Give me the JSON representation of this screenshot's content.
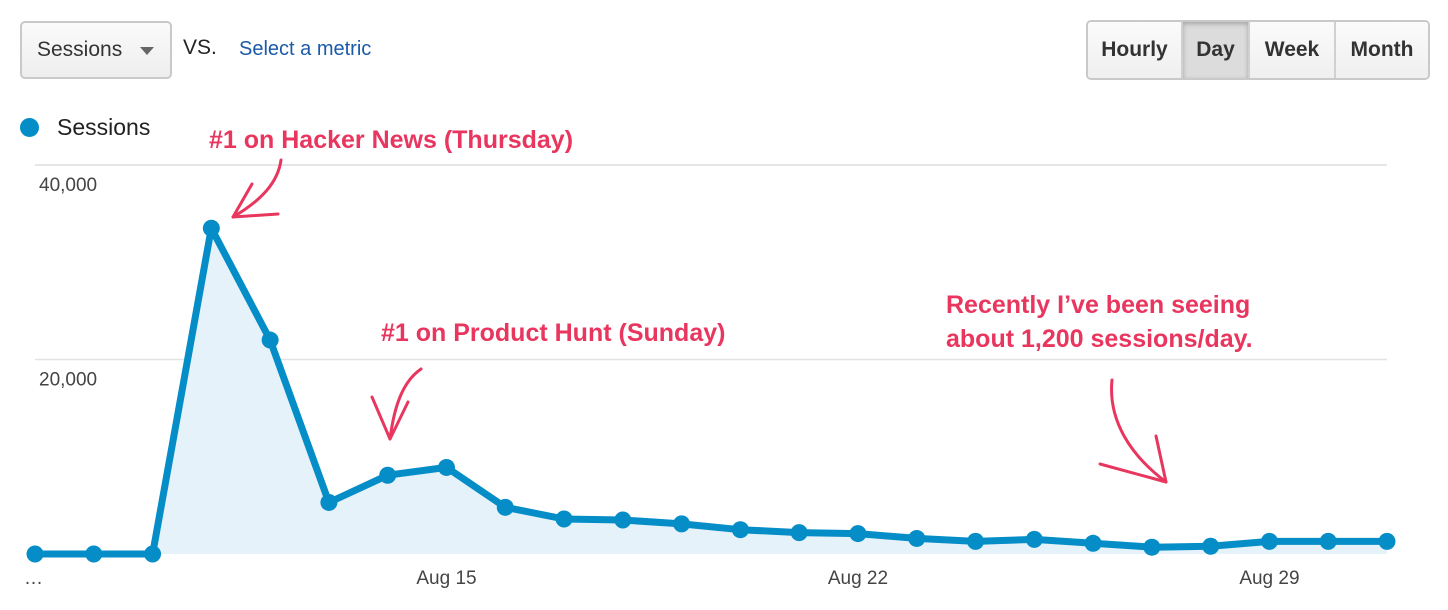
{
  "toolbar": {
    "metric_select_value": "Sessions",
    "vs_label": "VS.",
    "select_metric_link": "Select a metric",
    "granularity": [
      {
        "label": "Hourly",
        "active": false
      },
      {
        "label": "Day",
        "active": true
      },
      {
        "label": "Week",
        "active": false
      },
      {
        "label": "Month",
        "active": false
      }
    ]
  },
  "legend": {
    "label": "Sessions",
    "color": "#058dc7"
  },
  "annotation_color": "#e8365f",
  "chart_data": {
    "type": "area",
    "series": [
      {
        "name": "Sessions",
        "color": "#058dc7",
        "values": [
          0,
          0,
          0,
          33500,
          22000,
          5300,
          8100,
          8900,
          4800,
          3600,
          3500,
          3100,
          2500,
          2200,
          2100,
          1600,
          1300,
          1500,
          1100,
          700,
          800,
          1300,
          1300,
          1300
        ]
      }
    ],
    "x_tick_labels": [
      {
        "index": 0,
        "label": "…"
      },
      {
        "index": 7,
        "label": "Aug 15"
      },
      {
        "index": 14,
        "label": "Aug 22"
      },
      {
        "index": 21,
        "label": "Aug 29"
      }
    ],
    "y_ticks": [
      {
        "value": 20000,
        "label": "20,000"
      },
      {
        "value": 40000,
        "label": "40,000"
      }
    ],
    "ylim": [
      0,
      40000
    ],
    "grid": true,
    "annotations": [
      {
        "text": "#1 on Hacker News (Thursday)"
      },
      {
        "text": "#1 on Product Hunt (Sunday)"
      },
      {
        "text": "Recently I’ve been seeing\nabout 1,200 sessions/day."
      }
    ]
  }
}
